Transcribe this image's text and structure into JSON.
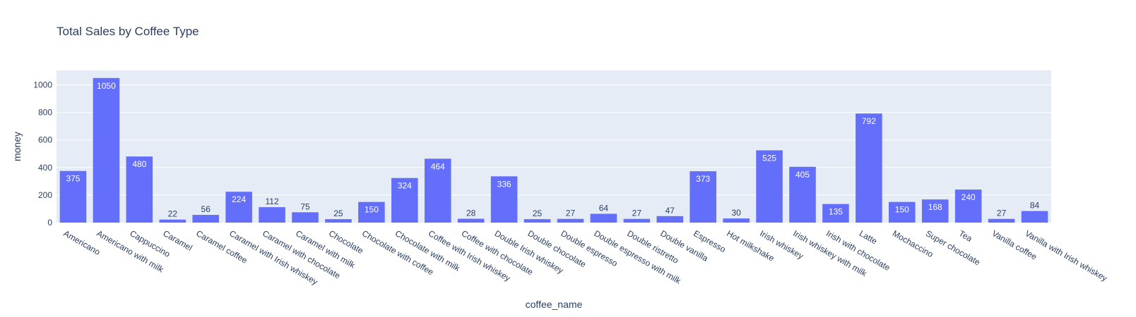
{
  "chart_data": {
    "type": "bar",
    "title": "Total Sales by Coffee Type",
    "xlabel": "coffee_name",
    "ylabel": "money",
    "ylim": [
      0,
      1105
    ],
    "yticks": [
      0,
      200,
      400,
      600,
      800,
      1000
    ],
    "grid": true,
    "legend": "none",
    "colors": {
      "bar": "#636efa",
      "plot_background": "#e5ecf6",
      "grid": "#ffffff",
      "text": "#2a3f5f",
      "label_inside": "#ffffff",
      "label_outside": "#2a3f5f"
    },
    "categories": [
      "Americano",
      "Americano with milk",
      "Cappuccino",
      "Caramel",
      "Caramel coffee",
      "Caramel with Irish whiskey",
      "Caramel with chocolate",
      "Caramel with milk",
      "Chocolate",
      "Chocolate with coffee",
      "Chocolate with milk",
      "Coffee with Irish whiskey",
      "Coffee with chocolate",
      "Double Irish whiskey",
      "Double chocolate",
      "Double espresso",
      "Double espresso with milk",
      "Double ristretto",
      "Double vanilla",
      "Espresso",
      "Hot milkshake",
      "Irish whiskey",
      "Irish whiskey with milk",
      "Irish with chocolate",
      "Latte",
      "Mochaccino",
      "Super chocolate",
      "Tea",
      "Vanilla coffee",
      "Vanilla with Irish whiskey"
    ],
    "values": [
      375,
      1050,
      480,
      22,
      56,
      224,
      112,
      75,
      25,
      150,
      324,
      464,
      28,
      336,
      25,
      27,
      64,
      27,
      47,
      373,
      30,
      525,
      405,
      135,
      792,
      150,
      168,
      240,
      27,
      84
    ]
  }
}
